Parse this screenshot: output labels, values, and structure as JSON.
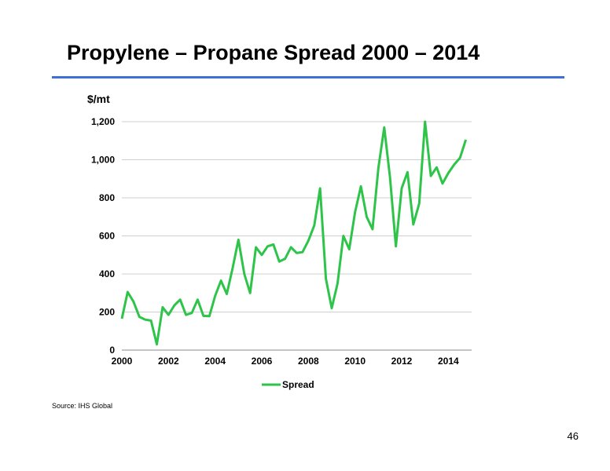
{
  "slide": {
    "title": "Propylene – Propane Spread 2000 – 2014",
    "source": "Source:  IHS Global",
    "page_number": "46",
    "accent_color": "#3d6fd6",
    "line_color": "#2ec44a"
  },
  "chart_data": {
    "type": "line",
    "title": "",
    "ylabel": "$/mt",
    "xlabel": "",
    "ylim": [
      0,
      1200
    ],
    "xlim": [
      2000,
      2015
    ],
    "y_ticks": [
      "0",
      "200",
      "400",
      "600",
      "800",
      "1,000",
      "1,200"
    ],
    "x_ticks": [
      "2000",
      "2002",
      "2004",
      "2006",
      "2008",
      "2010",
      "2012",
      "2014"
    ],
    "grid": true,
    "legend": "bottom",
    "series": [
      {
        "name": "Spread",
        "x": [
          2000.0,
          2000.25,
          2000.5,
          2000.75,
          2001.0,
          2001.25,
          2001.5,
          2001.75,
          2002.0,
          2002.25,
          2002.5,
          2002.75,
          2003.0,
          2003.25,
          2003.5,
          2003.75,
          2004.0,
          2004.25,
          2004.5,
          2004.75,
          2005.0,
          2005.25,
          2005.5,
          2005.75,
          2006.0,
          2006.25,
          2006.5,
          2006.75,
          2007.0,
          2007.25,
          2007.5,
          2007.75,
          2008.0,
          2008.25,
          2008.5,
          2008.75,
          2009.0,
          2009.25,
          2009.5,
          2009.75,
          2010.0,
          2010.25,
          2010.5,
          2010.75,
          2011.0,
          2011.25,
          2011.5,
          2011.75,
          2012.0,
          2012.25,
          2012.5,
          2012.75,
          2013.0,
          2013.25,
          2013.5,
          2013.75,
          2014.0,
          2014.25,
          2014.5,
          2014.75
        ],
        "y": [
          165,
          305,
          255,
          175,
          160,
          155,
          30,
          225,
          185,
          235,
          265,
          185,
          195,
          265,
          180,
          178,
          285,
          365,
          295,
          430,
          580,
          400,
          300,
          540,
          500,
          545,
          555,
          465,
          480,
          540,
          510,
          515,
          575,
          655,
          850,
          375,
          220,
          350,
          600,
          530,
          725,
          860,
          700,
          635,
          955,
          1170,
          905,
          545,
          850,
          935,
          660,
          770,
          1200,
          915,
          960,
          875,
          930,
          975,
          1010,
          1105
        ]
      }
    ]
  }
}
